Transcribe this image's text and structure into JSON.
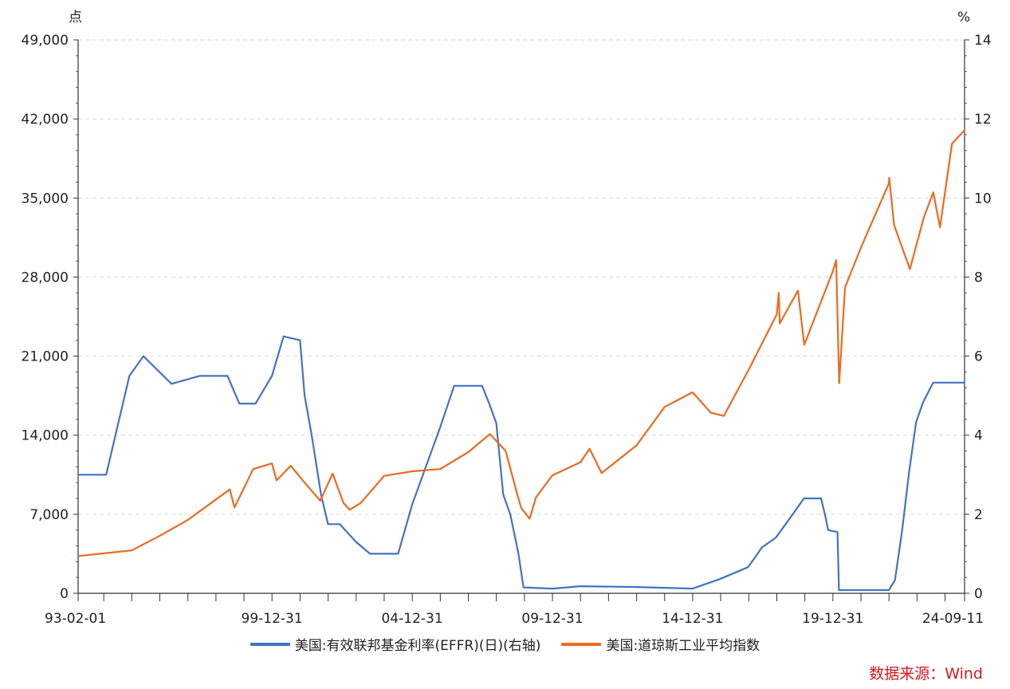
{
  "chart_data": {
    "type": "line",
    "left_unit": "点",
    "right_unit": "%",
    "left_axis": {
      "ylim": [
        0,
        49000
      ],
      "ticks": [
        "0",
        "7,000",
        "14,000",
        "21,000",
        "28,000",
        "35,000",
        "42,000",
        "49,000"
      ]
    },
    "right_axis": {
      "ylim": [
        0,
        14
      ],
      "ticks": [
        "0",
        "2",
        "4",
        "6",
        "8",
        "10",
        "12",
        "14"
      ]
    },
    "x_axis": {
      "range": [
        "93-02-01",
        "24-09-11"
      ],
      "tick_labels": [
        "93-02-01",
        "99-12-31",
        "04-12-31",
        "09-12-31",
        "14-12-31",
        "19-12-31",
        "24-09-11"
      ]
    },
    "grid": true,
    "legend_position": "bottom",
    "series": [
      {
        "name": "美国:有效联邦基金利率(EFFR)(日)(右轴)",
        "axis": "right",
        "color": "#4472c4",
        "x": [
          "1993-02-01",
          "1994-02-01",
          "1994-12-01",
          "1995-06-01",
          "1996-06-01",
          "1997-06-01",
          "1998-06-01",
          "1998-11-01",
          "1999-06-01",
          "1999-12-31",
          "2000-06-01",
          "2000-12-31",
          "2001-03-01",
          "2001-06-01",
          "2001-09-30",
          "2001-12-31",
          "2002-06-01",
          "2002-12-31",
          "2003-06-30",
          "2004-06-30",
          "2004-12-31",
          "2005-12-31",
          "2006-06-30",
          "2007-06-30",
          "2007-09-30",
          "2007-12-31",
          "2008-03-31",
          "2008-06-30",
          "2008-10-15",
          "2008-12-20",
          "2009-12-31",
          "2010-12-31",
          "2012-12-31",
          "2014-12-31",
          "2015-12-20",
          "2016-12-20",
          "2017-03-20",
          "2017-06-20",
          "2017-12-20",
          "2018-06-20",
          "2018-12-20",
          "2019-07-31",
          "2019-09-30",
          "2019-10-31",
          "2020-03-01",
          "2020-03-20",
          "2021-12-31",
          "2022-03-20",
          "2022-06-20",
          "2022-09-20",
          "2022-12-20",
          "2023-03-20",
          "2023-07-31",
          "2024-09-11"
        ],
        "values": [
          3.0,
          3.0,
          5.5,
          6.0,
          5.3,
          5.5,
          5.5,
          4.8,
          4.8,
          5.5,
          6.5,
          6.4,
          5.0,
          4.0,
          2.5,
          1.75,
          1.75,
          1.3,
          1.0,
          1.0,
          2.25,
          4.2,
          5.25,
          5.25,
          4.8,
          4.3,
          2.5,
          2.0,
          1.0,
          0.15,
          0.12,
          0.18,
          0.16,
          0.12,
          0.36,
          0.66,
          0.9,
          1.16,
          1.41,
          1.9,
          2.4,
          2.4,
          1.9,
          1.6,
          1.55,
          0.08,
          0.08,
          0.33,
          1.58,
          3.08,
          4.33,
          4.83,
          5.33,
          5.33
        ]
      },
      {
        "name": "美国:道琼斯工业平均指数",
        "axis": "left",
        "color": "#ed6a1f",
        "x": [
          "1993-02-01",
          "1995-01-01",
          "1996-01-01",
          "1997-01-01",
          "1998-07-01",
          "1998-08-31",
          "1999-05-01",
          "1999-12-31",
          "2000-03-01",
          "2000-09-01",
          "2001-03-01",
          "2001-09-20",
          "2002-03-01",
          "2002-07-20",
          "2002-10-09",
          "2003-03-01",
          "2004-01-01",
          "2005-01-01",
          "2006-01-01",
          "2006-12-31",
          "2007-10-09",
          "2008-05-01",
          "2008-10-10",
          "2008-11-20",
          "2009-03-09",
          "2009-06-01",
          "2009-12-31",
          "2010-12-31",
          "2011-04-29",
          "2011-10-03",
          "2012-12-31",
          "2013-12-31",
          "2014-12-31",
          "2015-08-24",
          "2016-02-11",
          "2016-12-31",
          "2017-12-31",
          "2018-01-26",
          "2018-02-08",
          "2018-10-03",
          "2018-12-24",
          "2019-12-31",
          "2020-02-12",
          "2020-03-23",
          "2020-06-08",
          "2020-12-31",
          "2021-12-31",
          "2022-01-04",
          "2022-03-08",
          "2022-09-30",
          "2023-03-31",
          "2023-07-31",
          "2023-10-27",
          "2024-03-31",
          "2024-09-11"
        ],
        "values": [
          3300,
          3800,
          5100,
          6500,
          9200,
          7600,
          11000,
          11500,
          10000,
          11300,
          9800,
          8200,
          10600,
          8000,
          7400,
          8000,
          10400,
          10800,
          11000,
          12500,
          14100,
          12600,
          8500,
          7550,
          6600,
          8500,
          10450,
          11600,
          12800,
          10650,
          13100,
          16500,
          17800,
          16000,
          15700,
          19800,
          24700,
          26600,
          23900,
          26800,
          22000,
          28500,
          29500,
          18600,
          27100,
          30600,
          36300,
          36800,
          32600,
          28700,
          33300,
          35500,
          32400,
          39800,
          41000
        ]
      }
    ]
  },
  "source_label": "数据来源：Wind"
}
